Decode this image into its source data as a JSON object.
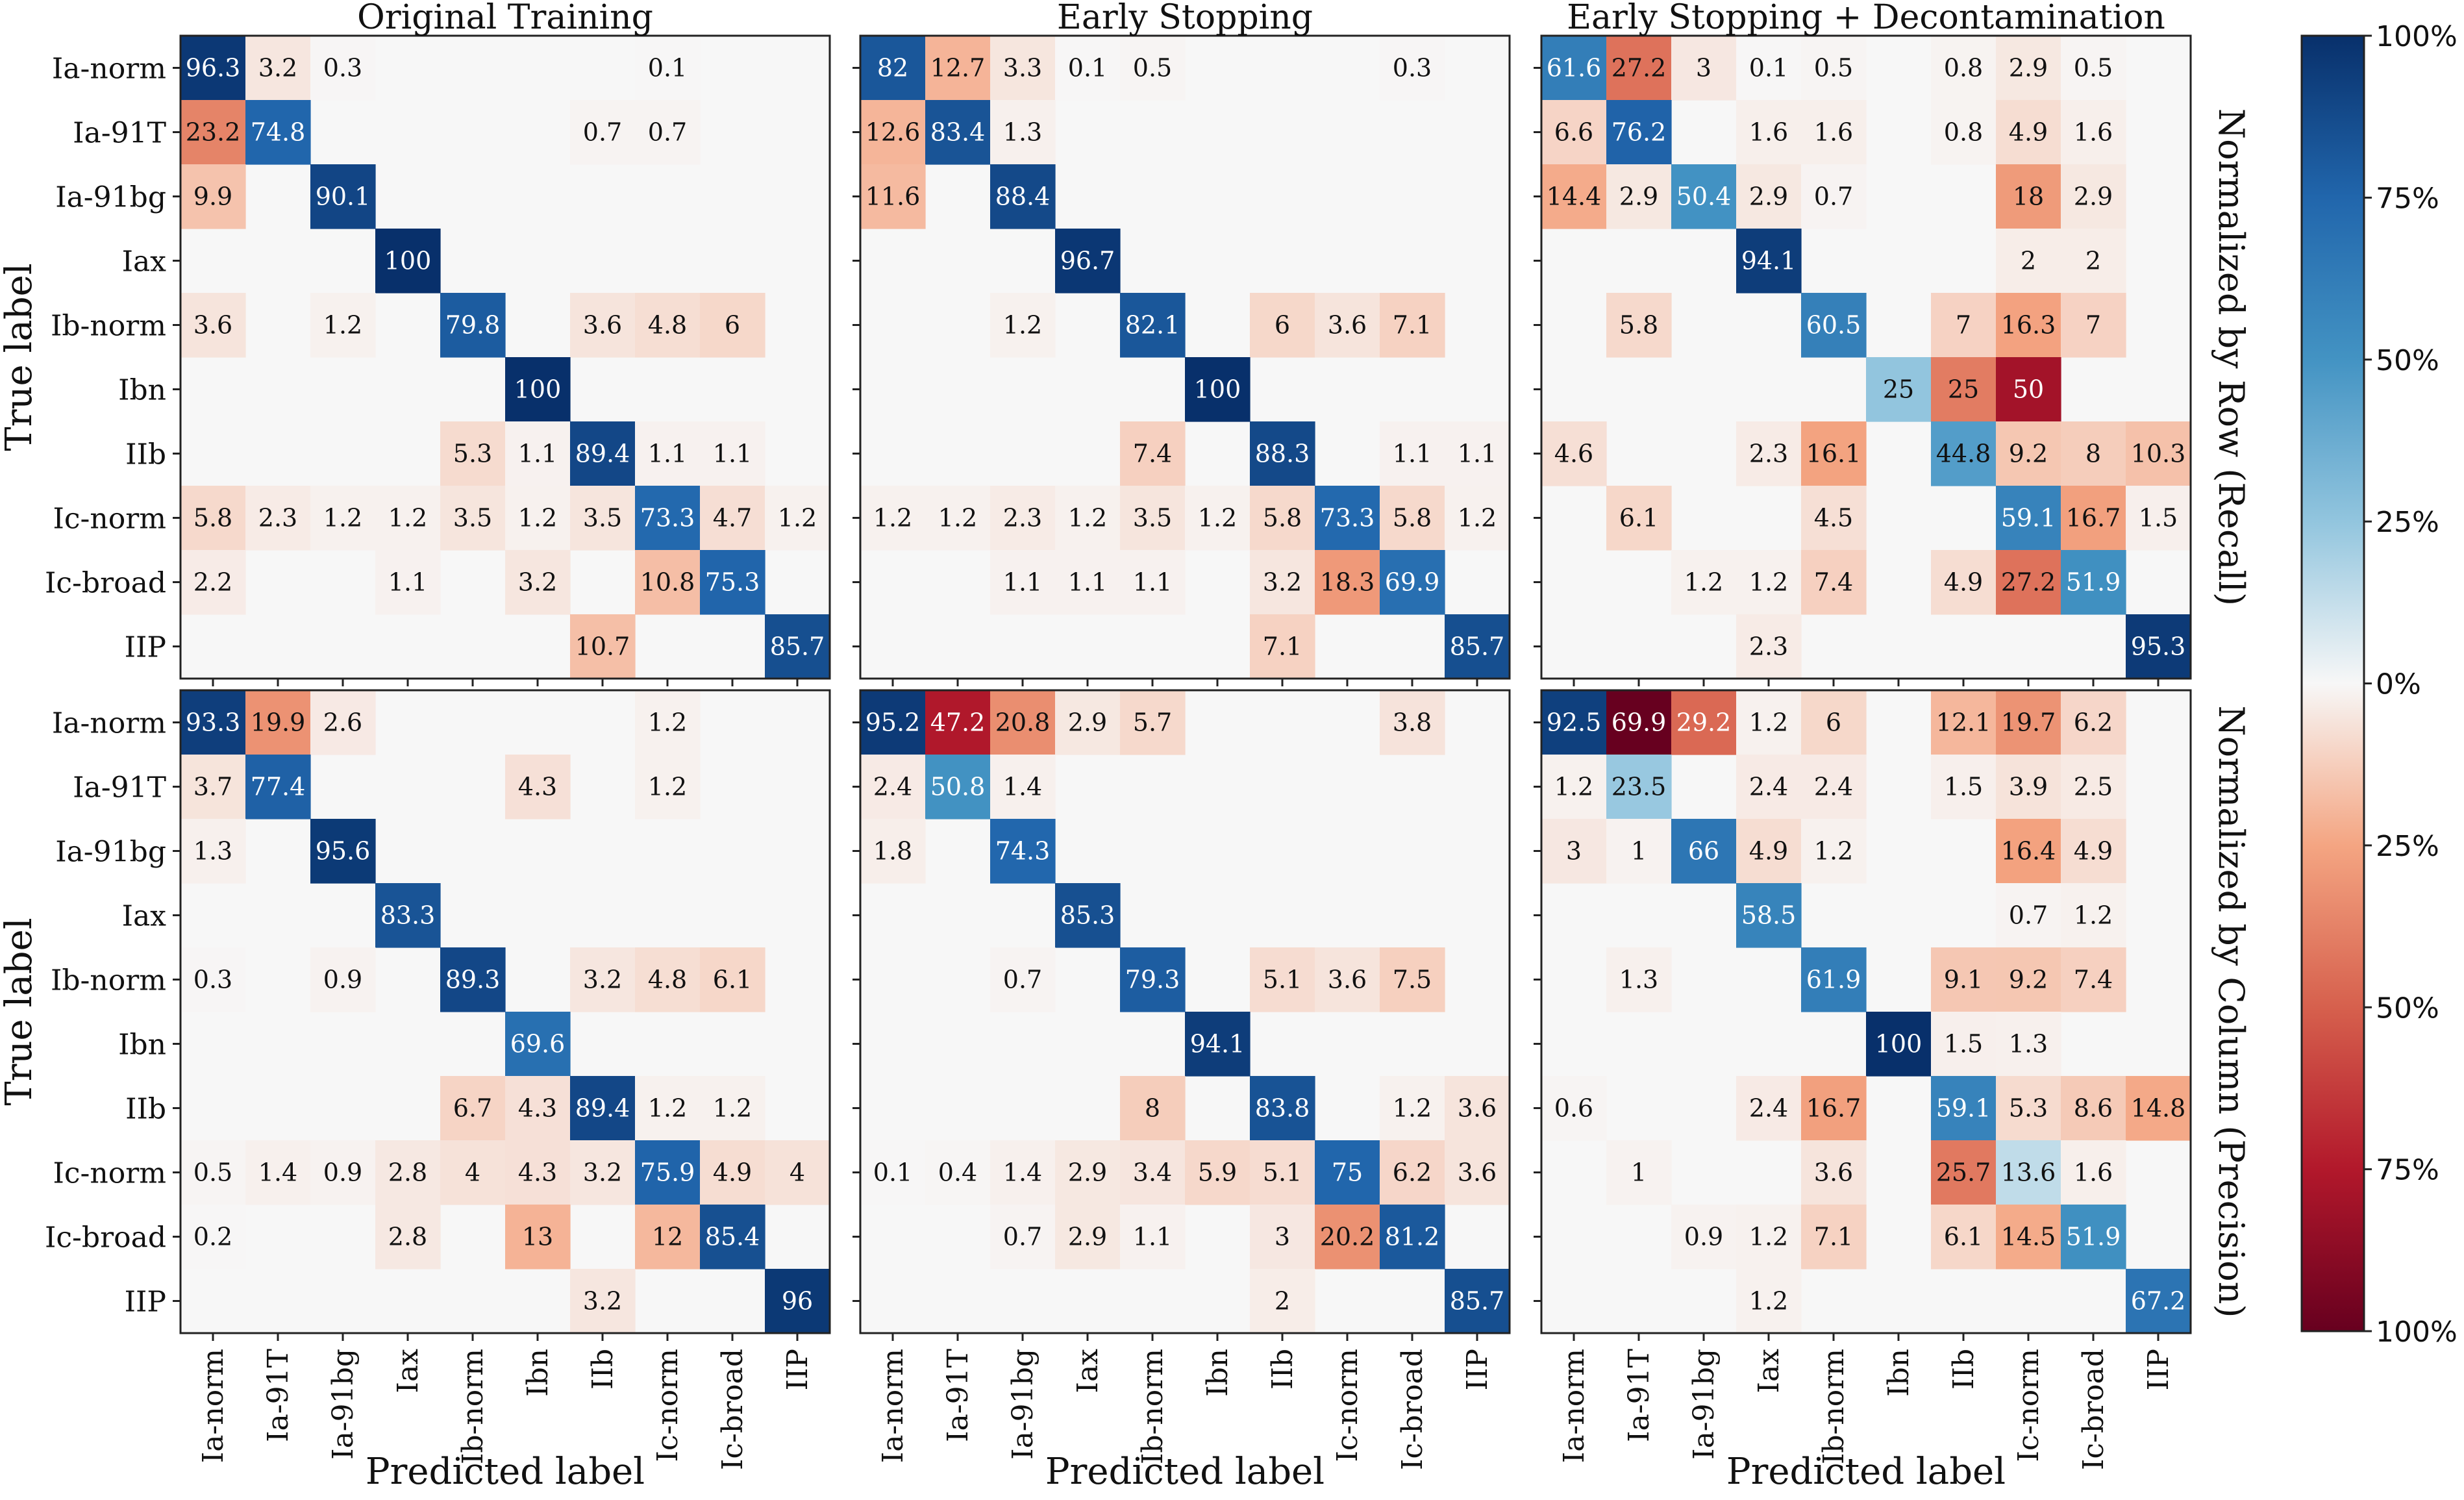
{
  "chart_data": {
    "type": "heatmap",
    "class_labels": [
      "Ia-norm",
      "Ia-91T",
      "Ia-91bg",
      "Iax",
      "Ib-norm",
      "Ibn",
      "IIb",
      "Ic-norm",
      "Ic-broad",
      "IIP"
    ],
    "xlabel": "Predicted label",
    "ylabel": "True label",
    "column_titles": [
      "Original Training",
      "Early Stopping",
      "Early Stopping + Decontamination"
    ],
    "row_titles": [
      "Normalized by Row (Recall)",
      "Normalized by Column (Precision)"
    ],
    "colorbar": {
      "tick_labels": [
        "100%",
        "75%",
        "50%",
        "25%",
        "0%",
        "25%",
        "50%",
        "75%",
        "100%"
      ],
      "upper_color": "#08306b",
      "lower_color": "#67001f"
    },
    "panels": [
      {
        "title": "Original Training",
        "normalization": "recall",
        "sign": 1,
        "values": [
          [
            96.3,
            3.2,
            0.3,
            null,
            null,
            null,
            null,
            0.1,
            null,
            null
          ],
          [
            23.2,
            74.8,
            null,
            null,
            null,
            null,
            0.7,
            0.7,
            null,
            null
          ],
          [
            9.9,
            null,
            90.1,
            null,
            null,
            null,
            null,
            null,
            null,
            null
          ],
          [
            null,
            null,
            null,
            100,
            null,
            null,
            null,
            null,
            null,
            null
          ],
          [
            3.6,
            null,
            1.2,
            null,
            79.8,
            null,
            3.6,
            4.8,
            6.0,
            null
          ],
          [
            null,
            null,
            null,
            null,
            null,
            100,
            null,
            null,
            null,
            null
          ],
          [
            null,
            null,
            null,
            null,
            5.3,
            1.1,
            89.4,
            1.1,
            1.1,
            null
          ],
          [
            5.8,
            2.3,
            1.2,
            1.2,
            3.5,
            1.2,
            3.5,
            73.3,
            4.7,
            1.2
          ],
          [
            2.2,
            null,
            null,
            1.1,
            null,
            3.2,
            null,
            10.8,
            75.3,
            null
          ],
          [
            null,
            null,
            null,
            null,
            null,
            null,
            10.7,
            null,
            null,
            85.7
          ]
        ]
      },
      {
        "title": "Early Stopping",
        "normalization": "recall",
        "sign": 1,
        "values": [
          [
            82.0,
            12.7,
            3.3,
            0.1,
            0.5,
            null,
            null,
            null,
            0.3,
            null
          ],
          [
            12.6,
            83.4,
            1.3,
            null,
            null,
            null,
            null,
            null,
            null,
            null
          ],
          [
            11.6,
            null,
            88.4,
            null,
            null,
            null,
            null,
            null,
            null,
            null
          ],
          [
            null,
            null,
            null,
            96.7,
            null,
            null,
            null,
            null,
            null,
            null
          ],
          [
            null,
            null,
            1.2,
            null,
            82.1,
            null,
            6.0,
            3.6,
            7.1,
            null
          ],
          [
            null,
            null,
            null,
            null,
            null,
            100,
            null,
            null,
            null,
            null
          ],
          [
            null,
            null,
            null,
            null,
            7.4,
            null,
            88.3,
            null,
            1.1,
            1.1
          ],
          [
            1.2,
            1.2,
            2.3,
            1.2,
            3.5,
            1.2,
            5.8,
            73.3,
            5.8,
            1.2
          ],
          [
            null,
            null,
            1.1,
            1.1,
            1.1,
            null,
            3.2,
            18.3,
            69.9,
            null
          ],
          [
            null,
            null,
            null,
            null,
            null,
            null,
            7.1,
            null,
            null,
            85.7
          ]
        ]
      },
      {
        "title": "Early Stopping + Decontamination",
        "normalization": "recall",
        "sign": 1,
        "values": [
          [
            61.6,
            27.2,
            3.0,
            0.1,
            0.5,
            null,
            0.8,
            2.9,
            0.5,
            null
          ],
          [
            6.6,
            76.2,
            null,
            1.6,
            1.6,
            null,
            0.8,
            4.9,
            1.6,
            null
          ],
          [
            14.4,
            2.9,
            50.4,
            2.9,
            0.7,
            null,
            null,
            18.0,
            2.9,
            null
          ],
          [
            null,
            null,
            null,
            94.1,
            null,
            null,
            null,
            2.0,
            2.0,
            null
          ],
          [
            null,
            5.8,
            null,
            null,
            60.5,
            null,
            7.0,
            16.3,
            7.0,
            null
          ],
          [
            null,
            null,
            null,
            null,
            null,
            25.0,
            25.0,
            50.0,
            null,
            null
          ],
          [
            4.6,
            null,
            null,
            2.3,
            16.1,
            null,
            44.8,
            9.2,
            8.0,
            10.3
          ],
          [
            null,
            6.1,
            null,
            null,
            4.5,
            null,
            null,
            59.1,
            16.7,
            1.5
          ],
          [
            null,
            null,
            1.2,
            1.2,
            7.4,
            null,
            4.9,
            27.2,
            51.9,
            null
          ],
          [
            null,
            null,
            null,
            2.3,
            null,
            null,
            null,
            null,
            null,
            95.3
          ]
        ]
      },
      {
        "title": "Original Training",
        "normalization": "precision",
        "sign": 1,
        "values": [
          [
            93.3,
            19.9,
            2.6,
            null,
            null,
            null,
            null,
            1.2,
            null,
            null
          ],
          [
            3.7,
            77.4,
            null,
            null,
            null,
            4.3,
            null,
            1.2,
            null,
            null
          ],
          [
            1.3,
            null,
            95.6,
            null,
            null,
            null,
            null,
            null,
            null,
            null
          ],
          [
            null,
            null,
            null,
            83.3,
            null,
            null,
            null,
            null,
            null,
            null
          ],
          [
            0.3,
            null,
            0.9,
            null,
            89.3,
            null,
            3.2,
            4.8,
            6.1,
            null
          ],
          [
            null,
            null,
            null,
            null,
            null,
            69.6,
            null,
            null,
            null,
            null
          ],
          [
            null,
            null,
            null,
            null,
            6.7,
            4.3,
            89.4,
            1.2,
            1.2,
            null
          ],
          [
            0.5,
            1.4,
            0.9,
            2.8,
            4.0,
            4.3,
            3.2,
            75.9,
            4.9,
            4.0
          ],
          [
            0.2,
            null,
            null,
            2.8,
            null,
            13.0,
            null,
            12.0,
            85.4,
            null
          ],
          [
            null,
            null,
            null,
            null,
            null,
            null,
            3.2,
            null,
            null,
            96.0
          ]
        ]
      },
      {
        "title": "Early Stopping",
        "normalization": "precision",
        "sign": 1,
        "values": [
          [
            95.2,
            47.2,
            20.8,
            2.9,
            5.7,
            null,
            null,
            null,
            3.8,
            null
          ],
          [
            2.4,
            50.8,
            1.4,
            null,
            null,
            null,
            null,
            null,
            null,
            null
          ],
          [
            1.8,
            null,
            74.3,
            null,
            null,
            null,
            null,
            null,
            null,
            null
          ],
          [
            null,
            null,
            null,
            85.3,
            null,
            null,
            null,
            null,
            null,
            null
          ],
          [
            null,
            null,
            0.7,
            null,
            79.3,
            null,
            5.1,
            3.6,
            7.5,
            null
          ],
          [
            null,
            null,
            null,
            null,
            null,
            94.1,
            null,
            null,
            null,
            null
          ],
          [
            null,
            null,
            null,
            null,
            8.0,
            null,
            83.8,
            null,
            1.2,
            3.6
          ],
          [
            0.1,
            0.4,
            1.4,
            2.9,
            3.4,
            5.9,
            5.1,
            75.0,
            6.2,
            3.6
          ],
          [
            null,
            null,
            0.7,
            2.9,
            1.1,
            null,
            3.0,
            20.2,
            81.2,
            null
          ],
          [
            null,
            null,
            null,
            null,
            null,
            null,
            2.0,
            null,
            null,
            85.7
          ]
        ]
      },
      {
        "title": "Early Stopping + Decontamination",
        "normalization": "precision",
        "sign": 1,
        "values": [
          [
            92.5,
            69.9,
            29.2,
            1.2,
            6.0,
            null,
            12.1,
            19.7,
            6.2,
            null
          ],
          [
            1.2,
            23.5,
            null,
            2.4,
            2.4,
            null,
            1.5,
            3.9,
            2.5,
            null
          ],
          [
            3.0,
            1.0,
            66.0,
            4.9,
            1.2,
            null,
            null,
            16.4,
            4.9,
            null
          ],
          [
            null,
            null,
            null,
            58.5,
            null,
            null,
            null,
            0.7,
            1.2,
            null
          ],
          [
            null,
            1.3,
            null,
            null,
            61.9,
            null,
            9.1,
            9.2,
            7.4,
            null
          ],
          [
            null,
            null,
            null,
            null,
            null,
            100,
            1.5,
            1.3,
            null,
            null
          ],
          [
            0.6,
            null,
            null,
            2.4,
            16.7,
            null,
            59.1,
            5.3,
            8.6,
            14.8
          ],
          [
            null,
            1.0,
            null,
            null,
            3.6,
            null,
            25.7,
            13.6,
            1.6,
            null
          ],
          [
            null,
            null,
            0.9,
            1.2,
            7.1,
            null,
            6.1,
            14.5,
            51.9,
            null
          ],
          [
            null,
            null,
            null,
            1.2,
            null,
            null,
            null,
            null,
            null,
            67.2
          ]
        ]
      }
    ]
  }
}
